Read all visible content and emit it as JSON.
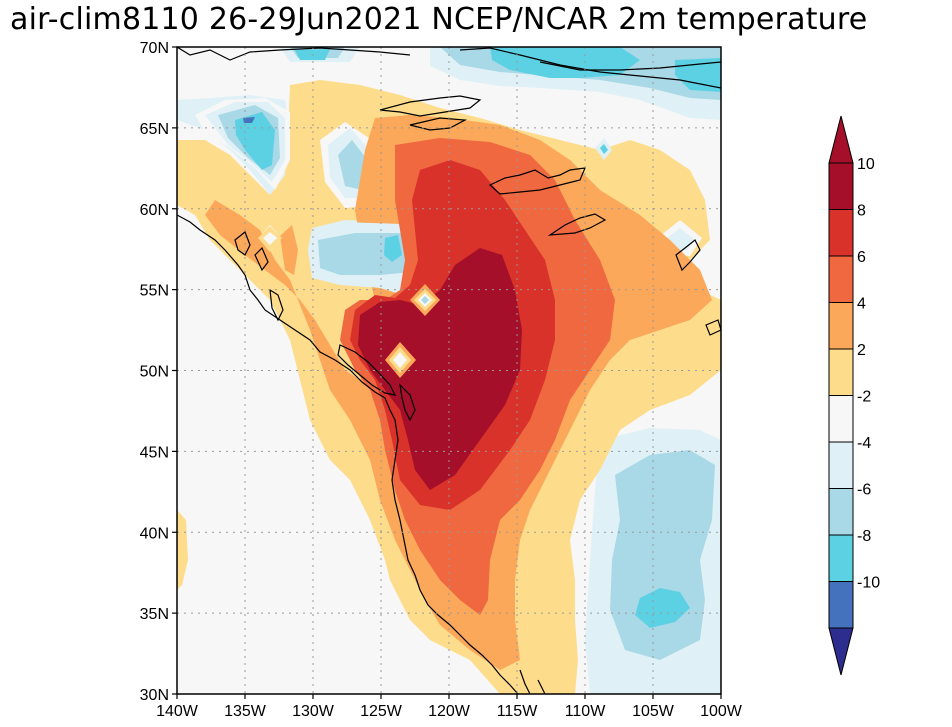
{
  "title": "air-clim8110 26-29Jun2021 NCEP/NCAR 2m temperature",
  "map": {
    "lon_range": [
      -140,
      -100
    ],
    "lat_range": [
      30,
      70
    ],
    "lon_ticks": [
      {
        "value": -140,
        "label": "140W"
      },
      {
        "value": -135,
        "label": "135W"
      },
      {
        "value": -130,
        "label": "130W"
      },
      {
        "value": -125,
        "label": "125W"
      },
      {
        "value": -120,
        "label": "120W"
      },
      {
        "value": -115,
        "label": "115W"
      },
      {
        "value": -110,
        "label": "110W"
      },
      {
        "value": -105,
        "label": "105W"
      },
      {
        "value": -100,
        "label": "100W"
      }
    ],
    "lat_ticks": [
      {
        "value": 30,
        "label": "30N"
      },
      {
        "value": 35,
        "label": "35N"
      },
      {
        "value": 40,
        "label": "40N"
      },
      {
        "value": 45,
        "label": "45N"
      },
      {
        "value": 50,
        "label": "50N"
      },
      {
        "value": 55,
        "label": "55N"
      },
      {
        "value": 60,
        "label": "60N"
      },
      {
        "value": 65,
        "label": "65N"
      },
      {
        "value": 70,
        "label": "70N"
      }
    ],
    "gridlines": "dotted"
  },
  "colorbar": {
    "levels": [
      {
        "label": "10",
        "color": "#a50f2a"
      },
      {
        "label": "8",
        "color": "#d8322a"
      },
      {
        "label": "6",
        "color": "#f06840"
      },
      {
        "label": "4",
        "color": "#fba85a"
      },
      {
        "label": "2",
        "color": "#fddc8c"
      },
      {
        "label": "-2",
        "color": "#f7f7f7"
      },
      {
        "label": "-4",
        "color": "#dff1f7"
      },
      {
        "label": "-6",
        "color": "#a9d8e6"
      },
      {
        "label": "-8",
        "color": "#5dd1e4"
      },
      {
        "label": "-10",
        "color": "#4472bd"
      }
    ],
    "top_triangle_color": "#a50f2a",
    "bottom_triangle_color": "#2c2d8f"
  },
  "colors": {
    "background": "#f7f7f7",
    "coast": "#000000",
    "grid": "#999999"
  }
}
